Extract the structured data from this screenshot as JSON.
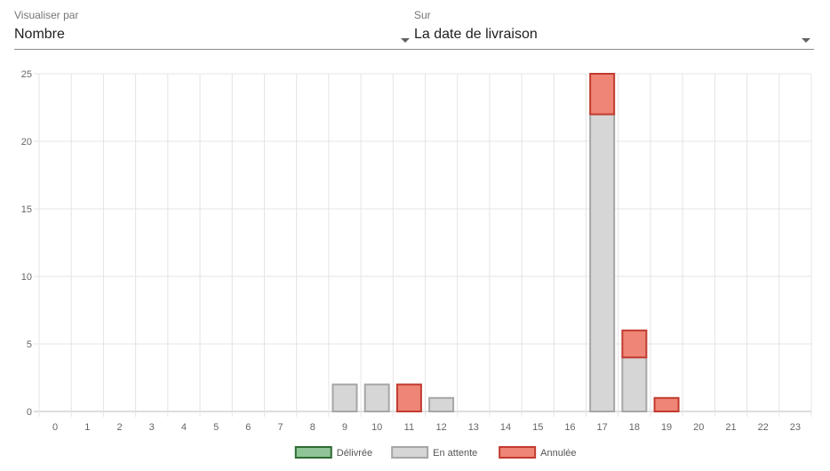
{
  "controls": {
    "metric": {
      "label": "Visualiser par",
      "value": "Nombre"
    },
    "group_by": {
      "label": "Sur",
      "value": "La date de livraison"
    }
  },
  "chart_data": {
    "type": "bar",
    "stacked": true,
    "categories": [
      "0",
      "1",
      "2",
      "3",
      "4",
      "5",
      "6",
      "7",
      "8",
      "9",
      "10",
      "11",
      "12",
      "13",
      "14",
      "15",
      "16",
      "17",
      "18",
      "19",
      "20",
      "21",
      "22",
      "23"
    ],
    "series": [
      {
        "name": "Délivrée",
        "values": [
          0,
          0,
          0,
          0,
          0,
          0,
          0,
          0,
          0,
          0,
          0,
          0,
          0,
          0,
          0,
          0,
          0,
          0,
          0,
          0,
          0,
          0,
          0,
          0
        ],
        "fill": "#8fc596",
        "stroke": "#2e6b34"
      },
      {
        "name": "En attente",
        "values": [
          0,
          0,
          0,
          0,
          0,
          0,
          0,
          0,
          0,
          2,
          2,
          0,
          1,
          0,
          0,
          0,
          0,
          22,
          4,
          0,
          0,
          0,
          0,
          0
        ],
        "fill": "#d6d6d6",
        "stroke": "#a6a6a6"
      },
      {
        "name": "Annulée",
        "values": [
          0,
          0,
          0,
          0,
          0,
          0,
          0,
          0,
          0,
          0,
          0,
          2,
          0,
          0,
          0,
          0,
          0,
          3,
          2,
          1,
          0,
          0,
          0,
          0
        ],
        "fill": "#ee8577",
        "stroke": "#c23b2e"
      }
    ],
    "ylim": [
      0,
      25
    ],
    "yticks": [
      0,
      5,
      10,
      15,
      20,
      25
    ],
    "grid": true,
    "legend": "bottom"
  }
}
